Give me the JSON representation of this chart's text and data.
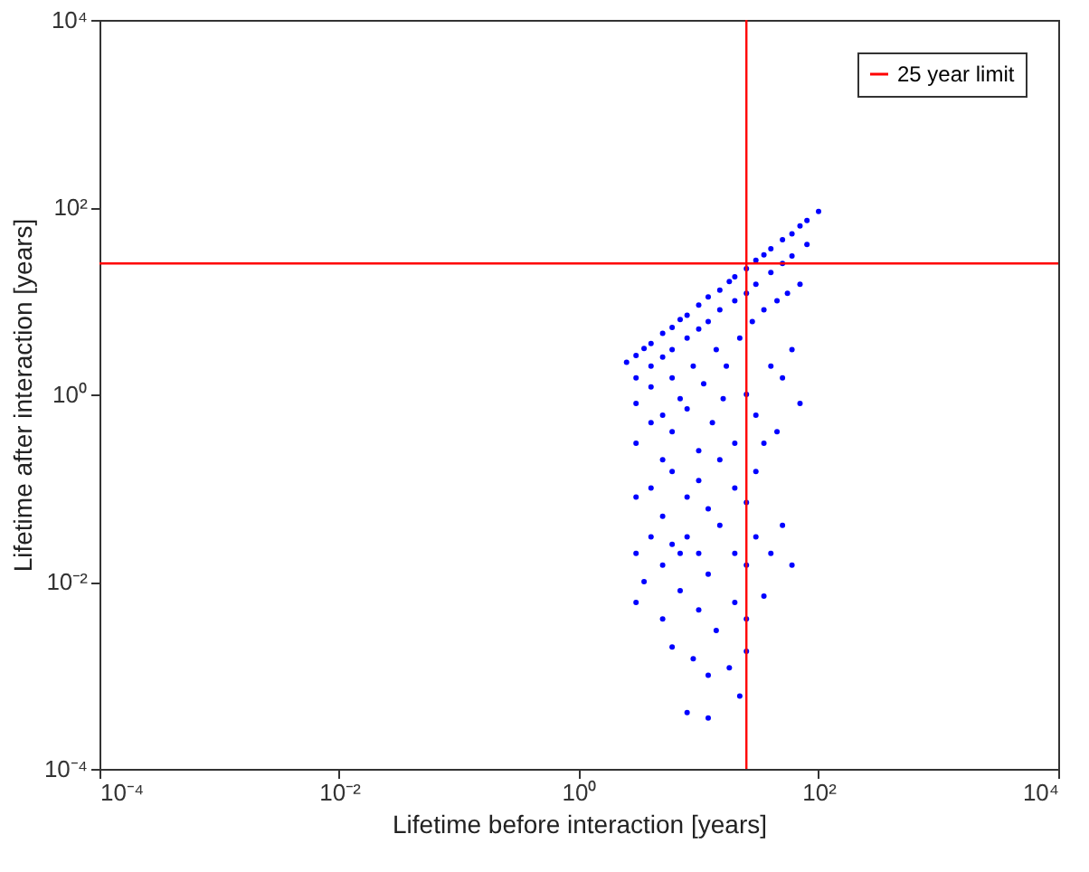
{
  "chart_data": {
    "type": "scatter",
    "xlabel": "Lifetime before interaction [years]",
    "ylabel": "Lifetime after interaction [years]",
    "log": "xy",
    "grid": false,
    "legend": "top right",
    "marker": "circle",
    "xlim": [
      0.0001,
      10000
    ],
    "ylim": [
      0.0001,
      10000
    ],
    "xticks": [
      {
        "value": 0.0001,
        "label": "10⁻⁴"
      },
      {
        "value": 0.01,
        "label": "10⁻²"
      },
      {
        "value": 1,
        "label": "10⁰"
      },
      {
        "value": 100,
        "label": "10²"
      },
      {
        "value": 10000,
        "label": "10⁴"
      }
    ],
    "yticks": [
      {
        "value": 0.0001,
        "label": "10⁻⁴"
      },
      {
        "value": 0.01,
        "label": "10⁻²"
      },
      {
        "value": 1,
        "label": "10⁰"
      },
      {
        "value": 100,
        "label": "10²"
      },
      {
        "value": 10000,
        "label": "10⁴"
      }
    ],
    "ref_lines": [
      {
        "axis": "y",
        "value": 25,
        "label": "25 year limit",
        "color": "#ff0000"
      },
      {
        "axis": "x",
        "value": 25,
        "color": "#ff0000"
      }
    ],
    "series": [
      {
        "color": "#0000ff",
        "x": [
          2.5,
          3,
          3.5,
          4,
          5,
          6,
          7,
          8,
          10,
          12,
          15,
          18,
          20,
          25,
          30,
          35,
          40,
          50,
          60,
          70,
          80,
          100,
          3,
          4,
          5,
          6,
          8,
          10,
          12,
          15,
          20,
          25,
          30,
          40,
          50,
          60,
          80,
          3,
          4,
          5,
          6,
          7,
          9,
          11,
          14,
          17,
          22,
          28,
          35,
          45,
          55,
          70,
          3,
          4,
          5,
          6,
          8,
          10,
          13,
          16,
          20,
          25,
          30,
          40,
          50,
          60,
          70,
          3,
          4,
          5,
          6,
          8,
          10,
          12,
          15,
          20,
          25,
          30,
          35,
          45,
          3,
          3.5,
          4,
          5,
          6,
          7,
          8,
          10,
          12,
          15,
          20,
          25,
          30,
          40,
          50,
          60,
          3,
          5,
          7,
          10,
          14,
          20,
          25,
          35,
          6,
          9,
          12,
          18,
          25,
          22,
          8,
          12
        ],
        "values": [
          2.2,
          2.6,
          3.1,
          3.5,
          4.5,
          5.2,
          6.3,
          7,
          9,
          11,
          13,
          16,
          18,
          22,
          27,
          31,
          36,
          45,
          52,
          63,
          72,
          90,
          1.5,
          2,
          2.5,
          3,
          4,
          5,
          6,
          8,
          10,
          12,
          15,
          20,
          25,
          30,
          40,
          0.8,
          1.2,
          0.6,
          1.5,
          0.9,
          2,
          1.3,
          3,
          2,
          4,
          6,
          8,
          10,
          12,
          15,
          0.3,
          0.5,
          0.2,
          0.4,
          0.7,
          0.25,
          0.5,
          0.9,
          0.3,
          1,
          0.6,
          2,
          1.5,
          3,
          0.8,
          0.08,
          0.1,
          0.05,
          0.15,
          0.08,
          0.12,
          0.06,
          0.2,
          0.1,
          0.07,
          0.15,
          0.3,
          0.4,
          0.02,
          0.01,
          0.03,
          0.015,
          0.025,
          0.02,
          0.03,
          0.02,
          0.012,
          0.04,
          0.02,
          0.015,
          0.03,
          0.02,
          0.04,
          0.015,
          0.006,
          0.004,
          0.008,
          0.005,
          0.003,
          0.006,
          0.004,
          0.007,
          0.002,
          0.0015,
          0.001,
          0.0012,
          0.0018,
          0.0006,
          0.0004,
          0.00035
        ]
      }
    ]
  }
}
